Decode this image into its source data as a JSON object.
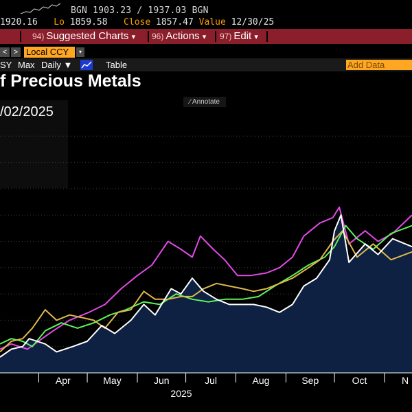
{
  "header": {
    "ticker_line": "BGN 1903.23 / 1937.03 BGN",
    "hi_value": "1920.16",
    "lo_label": "Lo",
    "lo_value": "1859.58",
    "close_label": "Close",
    "close_value": "1857.47",
    "value_label": "Value",
    "value_date": "12/30/25"
  },
  "menu": {
    "items": [
      {
        "num": "94)",
        "label": "Suggested Charts",
        "caret": "▾"
      },
      {
        "num": "96)",
        "label": "Actions",
        "caret": "▾"
      },
      {
        "num": "97)",
        "label": "Edit",
        "caret": "▾"
      }
    ]
  },
  "toolbar": {
    "prev_icon": "<",
    "next_icon": ">",
    "currency": "Local CCY",
    "currency_caret": "▾",
    "range_partial": "SY",
    "range_max": "Max",
    "frequency": "Daily ▼",
    "view_table": "Table",
    "add_data": "Add Data"
  },
  "title": "f Precious Metals",
  "annotate_label": "Annotate",
  "date_label": "/02/2025",
  "colors": {
    "background": "#000000",
    "area_fill": "#0e2142",
    "magenta": "#e24ae6",
    "green": "#5ef25a",
    "yellow": "#e0b84a",
    "white": "#ffffff",
    "accent_orange": "#ffa722",
    "menu_red": "#8b1e2b"
  },
  "chart_data": {
    "type": "line",
    "x_unit": "date",
    "year_label": "2025",
    "x_ticks": [
      "Apr",
      "May",
      "Jun",
      "Jul",
      "Aug",
      "Sep",
      "Oct",
      "N"
    ],
    "x_tick_dates": [
      "2025-04-01",
      "2025-05-01",
      "2025-06-01",
      "2025-07-01",
      "2025-08-01",
      "2025-09-01",
      "2025-10-01",
      "2025-11-01"
    ],
    "xlim": [
      "2025-03-08",
      "2025-11-18"
    ],
    "ylim": [
      0,
      100
    ],
    "grid": "horizontal dotted",
    "series": [
      {
        "color": "#e24ae6",
        "x": [
          "2025-03-08",
          "2025-03-15",
          "2025-03-25",
          "2025-04-03",
          "2025-04-10",
          "2025-04-20",
          "2025-05-02",
          "2025-05-12",
          "2025-05-22",
          "2025-06-01",
          "2025-06-10",
          "2025-06-20",
          "2025-06-28",
          "2025-07-05",
          "2025-07-10",
          "2025-07-18",
          "2025-07-25",
          "2025-08-02",
          "2025-08-10",
          "2025-08-20",
          "2025-08-28",
          "2025-09-05",
          "2025-09-12",
          "2025-09-22",
          "2025-09-30",
          "2025-10-04",
          "2025-10-10",
          "2025-10-20",
          "2025-10-28",
          "2025-11-06",
          "2025-11-18"
        ],
        "y": [
          9,
          11,
          9,
          13,
          16,
          20,
          23,
          26,
          32,
          37,
          41,
          50,
          47,
          44,
          52,
          47,
          43,
          37,
          37,
          38,
          40,
          44,
          52,
          57,
          59,
          63,
          49,
          54,
          50,
          53,
          60
        ]
      },
      {
        "color": "#5ef25a",
        "x": [
          "2025-03-08",
          "2025-03-15",
          "2025-03-22",
          "2025-03-28",
          "2025-04-05",
          "2025-04-15",
          "2025-04-25",
          "2025-05-05",
          "2025-05-15",
          "2025-05-25",
          "2025-06-05",
          "2025-06-15",
          "2025-06-25",
          "2025-07-05",
          "2025-07-15",
          "2025-07-25",
          "2025-08-05",
          "2025-08-15",
          "2025-08-25",
          "2025-09-05",
          "2025-09-15",
          "2025-09-25",
          "2025-10-01",
          "2025-10-08",
          "2025-10-15",
          "2025-10-25",
          "2025-11-05",
          "2025-11-18"
        ],
        "y": [
          11,
          13,
          12,
          10,
          16,
          19,
          17,
          19,
          22,
          24,
          27,
          26,
          30,
          28,
          27,
          28,
          28,
          29,
          33,
          37,
          41,
          44,
          48,
          56,
          51,
          47,
          53,
          56
        ]
      },
      {
        "color": "#e0b84a",
        "x": [
          "2025-03-08",
          "2025-03-15",
          "2025-03-22",
          "2025-03-28",
          "2025-04-05",
          "2025-04-12",
          "2025-04-20",
          "2025-04-28",
          "2025-05-05",
          "2025-05-12",
          "2025-05-20",
          "2025-05-28",
          "2025-06-05",
          "2025-06-12",
          "2025-06-20",
          "2025-06-28",
          "2025-07-05",
          "2025-07-12",
          "2025-07-20",
          "2025-07-28",
          "2025-08-05",
          "2025-08-12",
          "2025-08-20",
          "2025-08-28",
          "2025-09-05",
          "2025-09-15",
          "2025-09-22",
          "2025-09-30",
          "2025-10-06",
          "2025-10-15",
          "2025-10-25",
          "2025-11-05",
          "2025-11-18"
        ],
        "y": [
          8,
          12,
          13,
          17,
          24,
          20,
          22,
          21,
          20,
          17,
          23,
          24,
          31,
          28,
          28,
          29,
          29,
          32,
          34,
          33,
          32,
          31,
          32,
          34,
          36,
          40,
          43,
          50,
          54,
          44,
          49,
          43,
          46
        ]
      },
      {
        "color": "#ffffff",
        "x": [
          "2025-03-08",
          "2025-03-15",
          "2025-03-22",
          "2025-03-26",
          "2025-04-05",
          "2025-04-12",
          "2025-04-22",
          "2025-05-01",
          "2025-05-10",
          "2025-05-18",
          "2025-05-28",
          "2025-06-05",
          "2025-06-12",
          "2025-06-22",
          "2025-06-28",
          "2025-07-05",
          "2025-07-12",
          "2025-07-20",
          "2025-07-28",
          "2025-08-05",
          "2025-08-12",
          "2025-08-20",
          "2025-08-28",
          "2025-09-05",
          "2025-09-12",
          "2025-09-20",
          "2025-09-28",
          "2025-10-01",
          "2025-10-05",
          "2025-10-10",
          "2025-10-20",
          "2025-10-28",
          "2025-11-06",
          "2025-11-18"
        ],
        "y": [
          6,
          9,
          10,
          13,
          11,
          8,
          10,
          12,
          18,
          15,
          20,
          26,
          22,
          32,
          30,
          36,
          31,
          28,
          26,
          26,
          26,
          25,
          23,
          26,
          33,
          36,
          43,
          54,
          60,
          42,
          49,
          45,
          51,
          48
        ]
      }
    ],
    "fill_under_series": 3
  }
}
